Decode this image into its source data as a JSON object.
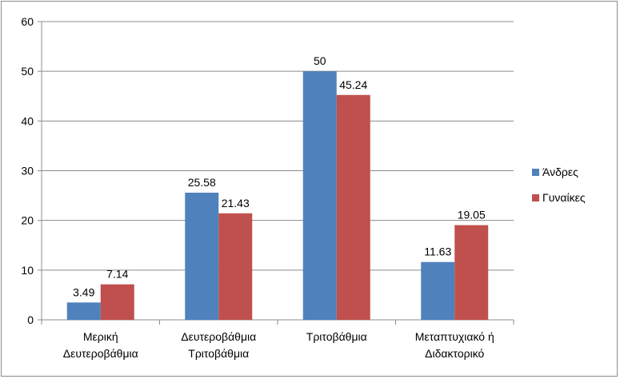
{
  "chart_data": {
    "type": "bar",
    "categories": [
      [
        "Μερική",
        "Δευτεροβάθμια"
      ],
      [
        "Δευτεροβάθμια",
        "Τριτοβάθμια"
      ],
      [
        "Τριτοβάθμια"
      ],
      [
        "Μεταπτυχιακό ή",
        "Διδακτορικό"
      ]
    ],
    "series": [
      {
        "name": "Άνδρες",
        "color": "#4F81BD",
        "values": [
          3.49,
          25.58,
          50,
          11.63
        ],
        "labels": [
          "3.49",
          "25.58",
          "50",
          "11.63"
        ]
      },
      {
        "name": "Γυναίκες",
        "color": "#C0504D",
        "values": [
          7.14,
          21.43,
          45.24,
          19.05
        ],
        "labels": [
          "7.14",
          "21.43",
          "45.24",
          "19.05"
        ]
      }
    ],
    "title": "",
    "xlabel": "",
    "ylabel": "",
    "ylim": [
      0,
      60
    ],
    "yticks": [
      "0",
      "10",
      "20",
      "30",
      "40",
      "50",
      "60"
    ],
    "grid": true,
    "legend_position": "right"
  }
}
